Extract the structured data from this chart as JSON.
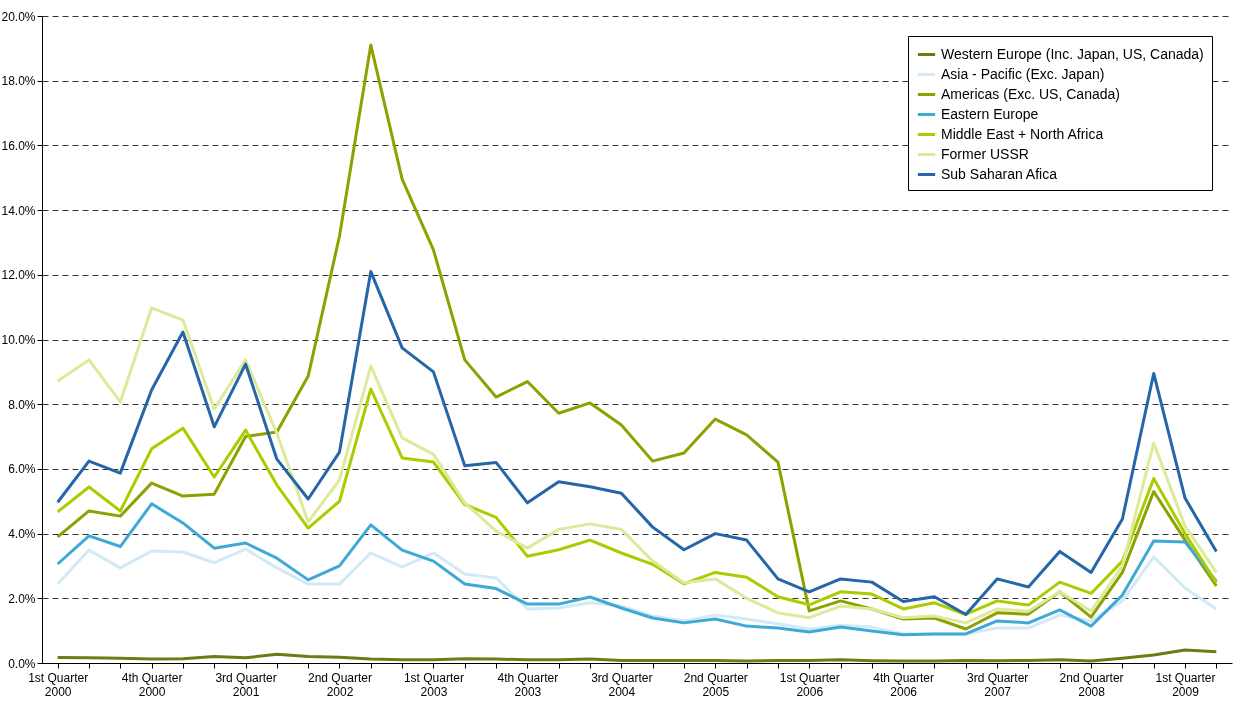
{
  "chart_data": {
    "type": "line",
    "categories": [
      "1st Quarter 2000",
      null,
      null,
      "4th Quarter 2000",
      null,
      null,
      "3rd Quarter 2001",
      null,
      null,
      "2nd Quarter 2002",
      null,
      null,
      "1st Quarter 2003",
      null,
      null,
      "4th Quarter 2003",
      null,
      null,
      "3rd Quarter 2004",
      null,
      null,
      "2nd Quarter 2005",
      null,
      null,
      "1st Quarter 2006",
      null,
      null,
      "4th Quarter 2006",
      null,
      null,
      "3rd Quarter 2007",
      null,
      null,
      "2nd Quarter 2008",
      null,
      null,
      "1st Quarter 2009",
      null
    ],
    "series": [
      {
        "name": "Western Europe (Inc. Japan, US, Canada)",
        "color": "#6f7a14",
        "values": [
          0.17,
          0.16,
          0.15,
          0.12,
          0.13,
          0.2,
          0.16,
          0.27,
          0.2,
          0.18,
          0.12,
          0.1,
          0.1,
          0.13,
          0.12,
          0.1,
          0.1,
          0.12,
          0.08,
          0.08,
          0.08,
          0.08,
          0.06,
          0.08,
          0.08,
          0.1,
          0.07,
          0.06,
          0.06,
          0.08,
          0.07,
          0.08,
          0.1,
          0.06,
          0.15,
          0.25,
          0.4,
          0.35
        ]
      },
      {
        "name": "Asia - Pacific (Exc. Japan)",
        "color": "#d2eaf5",
        "values": [
          2.44,
          3.49,
          2.94,
          3.46,
          3.43,
          3.1,
          3.52,
          2.94,
          2.44,
          2.44,
          3.4,
          2.97,
          3.4,
          2.75,
          2.63,
          1.67,
          1.7,
          1.86,
          1.76,
          1.45,
          1.3,
          1.48,
          1.36,
          1.21,
          1.05,
          1.17,
          1.11,
          0.9,
          0.9,
          0.9,
          1.08,
          1.08,
          1.48,
          1.3,
          1.92,
          3.28,
          2.32,
          1.67
        ]
      },
      {
        "name": "Americas (Exc. US, Canada)",
        "color": "#8fa000",
        "values": [
          3.9,
          4.7,
          4.54,
          5.56,
          5.16,
          5.22,
          7.0,
          7.14,
          8.87,
          13.2,
          19.1,
          14.96,
          12.77,
          9.37,
          8.22,
          8.7,
          7.72,
          8.04,
          7.36,
          6.24,
          6.49,
          7.54,
          7.05,
          6.21,
          1.61,
          1.92,
          1.67,
          1.36,
          1.39,
          1.05,
          1.55,
          1.51,
          2.2,
          1.42,
          2.8,
          5.3,
          3.8,
          2.38
        ]
      },
      {
        "name": "Eastern Europe",
        "color": "#3fa9d6",
        "values": [
          3.06,
          3.93,
          3.6,
          4.92,
          4.33,
          3.55,
          3.71,
          3.24,
          2.57,
          3.0,
          4.27,
          3.49,
          3.15,
          2.44,
          2.3,
          1.82,
          1.82,
          2.04,
          1.7,
          1.39,
          1.24,
          1.36,
          1.14,
          1.08,
          0.96,
          1.11,
          0.99,
          0.87,
          0.9,
          0.9,
          1.3,
          1.24,
          1.64,
          1.14,
          2.1,
          3.77,
          3.74,
          2.53
        ]
      },
      {
        "name": "Middle East + North Africa",
        "color": "#abcc00",
        "values": [
          4.67,
          5.44,
          4.7,
          6.62,
          7.26,
          5.75,
          7.2,
          5.5,
          4.17,
          5.0,
          8.47,
          6.34,
          6.21,
          4.9,
          4.5,
          3.3,
          3.5,
          3.8,
          3.4,
          3.05,
          2.45,
          2.8,
          2.65,
          2.05,
          1.8,
          2.2,
          2.13,
          1.67,
          1.86,
          1.5,
          1.92,
          1.79,
          2.5,
          2.15,
          3.15,
          5.7,
          4.0,
          2.48
        ]
      },
      {
        "name": "Former USSR",
        "color": "#dcea99",
        "values": [
          8.72,
          9.37,
          8.07,
          10.98,
          10.6,
          7.85,
          9.37,
          7.1,
          4.36,
          5.66,
          9.18,
          6.96,
          6.45,
          4.95,
          4.08,
          3.55,
          4.13,
          4.3,
          4.13,
          3.15,
          2.48,
          2.6,
          2.0,
          1.55,
          1.4,
          1.76,
          1.67,
          1.4,
          1.45,
          1.24,
          1.67,
          1.6,
          2.2,
          1.6,
          3.0,
          6.8,
          4.23,
          2.8
        ]
      },
      {
        "name": "Sub Saharan Afica",
        "color": "#2566a8",
        "values": [
          4.97,
          6.24,
          5.87,
          8.44,
          10.23,
          7.3,
          9.24,
          6.3,
          5.07,
          6.52,
          12.1,
          9.74,
          9.0,
          6.1,
          6.2,
          4.95,
          5.6,
          5.45,
          5.25,
          4.2,
          3.5,
          4.0,
          3.8,
          2.6,
          2.2,
          2.6,
          2.5,
          1.9,
          2.05,
          1.5,
          2.6,
          2.35,
          3.45,
          2.8,
          4.45,
          8.95,
          5.1,
          3.45
        ]
      }
    ],
    "ylim": [
      0,
      20
    ],
    "yticks": [
      {
        "value": 0,
        "label": "0.0%"
      },
      {
        "value": 2,
        "label": "2.0%"
      },
      {
        "value": 4,
        "label": "4.0%"
      },
      {
        "value": 6,
        "label": "6.0%"
      },
      {
        "value": 8,
        "label": "8.0%"
      },
      {
        "value": 10,
        "label": "10.0%"
      },
      {
        "value": 12,
        "label": "12.0%"
      },
      {
        "value": 14,
        "label": "14.0%"
      },
      {
        "value": 16,
        "label": "16.0%"
      },
      {
        "value": 18,
        "label": "18.0%"
      },
      {
        "value": 20,
        "label": "20.0%"
      }
    ],
    "grid": "y",
    "legend": "top right"
  }
}
